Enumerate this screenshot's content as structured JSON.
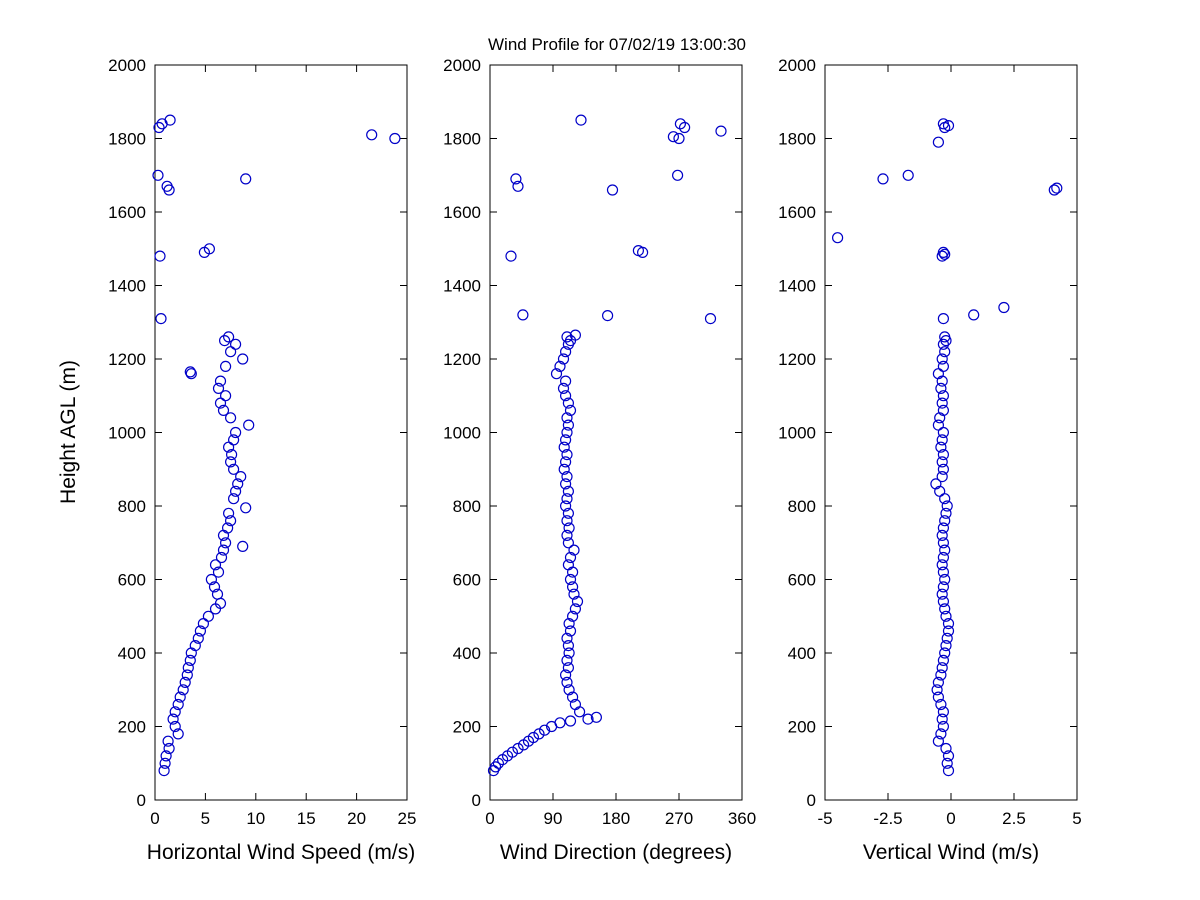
{
  "title": "Wind Profile for  07/02/19 13:00:30",
  "ylabel": "Height AGL (m)",
  "marker_color": "#0000c8",
  "chart_data": [
    {
      "type": "scatter",
      "name": "horizontal-wind-speed",
      "xlabel": "Horizontal Wind Speed (m/s)",
      "ylabel": "Height AGL (m)",
      "xlim": [
        0,
        25
      ],
      "xticks": [
        0,
        5,
        10,
        15,
        20,
        25
      ],
      "ylim": [
        0,
        2000
      ],
      "yticks": [
        0,
        200,
        400,
        600,
        800,
        1000,
        1200,
        1400,
        1600,
        1800,
        2000
      ],
      "grid": false,
      "points": [
        [
          0.9,
          80
        ],
        [
          1.0,
          100
        ],
        [
          1.1,
          120
        ],
        [
          1.4,
          140
        ],
        [
          1.3,
          160
        ],
        [
          2.3,
          180
        ],
        [
          2.0,
          200
        ],
        [
          1.8,
          220
        ],
        [
          2.0,
          240
        ],
        [
          2.3,
          260
        ],
        [
          2.5,
          280
        ],
        [
          2.8,
          300
        ],
        [
          3.0,
          320
        ],
        [
          3.2,
          340
        ],
        [
          3.3,
          360
        ],
        [
          3.5,
          380
        ],
        [
          3.6,
          400
        ],
        [
          4.0,
          420
        ],
        [
          4.3,
          440
        ],
        [
          4.5,
          460
        ],
        [
          4.8,
          480
        ],
        [
          5.3,
          500
        ],
        [
          6.0,
          520
        ],
        [
          6.5,
          535
        ],
        [
          6.2,
          560
        ],
        [
          5.9,
          580
        ],
        [
          5.6,
          600
        ],
        [
          6.3,
          620
        ],
        [
          6.0,
          640
        ],
        [
          6.6,
          660
        ],
        [
          6.8,
          680
        ],
        [
          8.7,
          690
        ],
        [
          7.0,
          700
        ],
        [
          6.8,
          720
        ],
        [
          7.2,
          740
        ],
        [
          7.5,
          760
        ],
        [
          7.3,
          780
        ],
        [
          9.0,
          795
        ],
        [
          7.8,
          820
        ],
        [
          8.0,
          840
        ],
        [
          8.2,
          860
        ],
        [
          8.5,
          880
        ],
        [
          7.8,
          900
        ],
        [
          7.5,
          920
        ],
        [
          7.6,
          940
        ],
        [
          7.3,
          960
        ],
        [
          7.8,
          980
        ],
        [
          8.0,
          1000
        ],
        [
          9.3,
          1020
        ],
        [
          7.5,
          1040
        ],
        [
          6.8,
          1060
        ],
        [
          6.5,
          1080
        ],
        [
          7.0,
          1100
        ],
        [
          6.3,
          1120
        ],
        [
          6.5,
          1140
        ],
        [
          3.6,
          1160
        ],
        [
          3.5,
          1165
        ],
        [
          7.0,
          1180
        ],
        [
          8.7,
          1200
        ],
        [
          7.5,
          1220
        ],
        [
          8.0,
          1240
        ],
        [
          6.9,
          1250
        ],
        [
          7.3,
          1260
        ],
        [
          0.6,
          1310
        ],
        [
          0.5,
          1480
        ],
        [
          4.9,
          1490
        ],
        [
          5.4,
          1500
        ],
        [
          1.4,
          1660
        ],
        [
          1.2,
          1670
        ],
        [
          9.0,
          1690
        ],
        [
          0.3,
          1700
        ],
        [
          23.8,
          1800
        ],
        [
          21.5,
          1810
        ],
        [
          0.4,
          1830
        ],
        [
          0.7,
          1840
        ],
        [
          1.5,
          1850
        ]
      ]
    },
    {
      "type": "scatter",
      "name": "wind-direction",
      "xlabel": "Wind Direction (degrees)",
      "ylabel": "Height AGL (m)",
      "xlim": [
        0,
        360
      ],
      "xticks": [
        0,
        90,
        180,
        270,
        360
      ],
      "ylim": [
        0,
        2000
      ],
      "yticks": [
        0,
        200,
        400,
        600,
        800,
        1000,
        1200,
        1400,
        1600,
        1800,
        2000
      ],
      "grid": false,
      "points": [
        [
          5,
          80
        ],
        [
          8,
          90
        ],
        [
          12,
          100
        ],
        [
          18,
          110
        ],
        [
          25,
          120
        ],
        [
          32,
          130
        ],
        [
          40,
          140
        ],
        [
          48,
          150
        ],
        [
          55,
          160
        ],
        [
          62,
          170
        ],
        [
          70,
          180
        ],
        [
          78,
          190
        ],
        [
          88,
          200
        ],
        [
          100,
          210
        ],
        [
          115,
          215
        ],
        [
          140,
          220
        ],
        [
          152,
          225
        ],
        [
          128,
          240
        ],
        [
          122,
          260
        ],
        [
          118,
          280
        ],
        [
          113,
          300
        ],
        [
          110,
          320
        ],
        [
          108,
          340
        ],
        [
          112,
          360
        ],
        [
          110,
          380
        ],
        [
          113,
          400
        ],
        [
          112,
          420
        ],
        [
          110,
          440
        ],
        [
          115,
          460
        ],
        [
          113,
          480
        ],
        [
          118,
          500
        ],
        [
          122,
          520
        ],
        [
          125,
          540
        ],
        [
          120,
          560
        ],
        [
          118,
          580
        ],
        [
          115,
          600
        ],
        [
          118,
          620
        ],
        [
          112,
          640
        ],
        [
          115,
          660
        ],
        [
          120,
          680
        ],
        [
          112,
          700
        ],
        [
          110,
          720
        ],
        [
          113,
          740
        ],
        [
          110,
          760
        ],
        [
          112,
          780
        ],
        [
          108,
          800
        ],
        [
          110,
          820
        ],
        [
          112,
          840
        ],
        [
          108,
          860
        ],
        [
          110,
          880
        ],
        [
          106,
          900
        ],
        [
          108,
          920
        ],
        [
          110,
          940
        ],
        [
          106,
          960
        ],
        [
          108,
          980
        ],
        [
          110,
          1000
        ],
        [
          112,
          1020
        ],
        [
          110,
          1040
        ],
        [
          115,
          1060
        ],
        [
          112,
          1080
        ],
        [
          108,
          1100
        ],
        [
          105,
          1120
        ],
        [
          108,
          1140
        ],
        [
          95,
          1160
        ],
        [
          100,
          1180
        ],
        [
          105,
          1200
        ],
        [
          108,
          1220
        ],
        [
          112,
          1240
        ],
        [
          115,
          1250
        ],
        [
          110,
          1260
        ],
        [
          122,
          1265
        ],
        [
          315,
          1310
        ],
        [
          168,
          1318
        ],
        [
          47,
          1320
        ],
        [
          30,
          1480
        ],
        [
          218,
          1490
        ],
        [
          212,
          1495
        ],
        [
          175,
          1660
        ],
        [
          40,
          1670
        ],
        [
          37,
          1690
        ],
        [
          268,
          1700
        ],
        [
          270,
          1800
        ],
        [
          262,
          1805
        ],
        [
          330,
          1820
        ],
        [
          278,
          1830
        ],
        [
          272,
          1840
        ],
        [
          130,
          1850
        ]
      ]
    },
    {
      "type": "scatter",
      "name": "vertical-wind",
      "xlabel": "Vertical Wind (m/s)",
      "ylabel": "Height AGL (m)",
      "xlim": [
        -5,
        5
      ],
      "xticks": [
        -5,
        -2.5,
        0,
        2.5,
        5
      ],
      "ylim": [
        0,
        2000
      ],
      "yticks": [
        0,
        200,
        400,
        600,
        800,
        1000,
        1200,
        1400,
        1600,
        1800,
        2000
      ],
      "grid": false,
      "points": [
        [
          -0.1,
          80
        ],
        [
          -0.15,
          100
        ],
        [
          -0.1,
          120
        ],
        [
          -0.2,
          140
        ],
        [
          -0.5,
          160
        ],
        [
          -0.4,
          180
        ],
        [
          -0.3,
          200
        ],
        [
          -0.35,
          220
        ],
        [
          -0.3,
          240
        ],
        [
          -0.4,
          260
        ],
        [
          -0.5,
          280
        ],
        [
          -0.55,
          300
        ],
        [
          -0.5,
          320
        ],
        [
          -0.4,
          340
        ],
        [
          -0.35,
          360
        ],
        [
          -0.3,
          380
        ],
        [
          -0.25,
          400
        ],
        [
          -0.2,
          420
        ],
        [
          -0.15,
          440
        ],
        [
          -0.1,
          460
        ],
        [
          -0.1,
          480
        ],
        [
          -0.2,
          500
        ],
        [
          -0.25,
          520
        ],
        [
          -0.3,
          540
        ],
        [
          -0.35,
          560
        ],
        [
          -0.3,
          580
        ],
        [
          -0.25,
          600
        ],
        [
          -0.3,
          620
        ],
        [
          -0.35,
          640
        ],
        [
          -0.3,
          660
        ],
        [
          -0.25,
          680
        ],
        [
          -0.3,
          700
        ],
        [
          -0.35,
          720
        ],
        [
          -0.3,
          740
        ],
        [
          -0.25,
          760
        ],
        [
          -0.2,
          780
        ],
        [
          -0.15,
          800
        ],
        [
          -0.25,
          820
        ],
        [
          -0.45,
          840
        ],
        [
          -0.6,
          860
        ],
        [
          -0.35,
          880
        ],
        [
          -0.3,
          900
        ],
        [
          -0.35,
          920
        ],
        [
          -0.3,
          940
        ],
        [
          -0.4,
          960
        ],
        [
          -0.35,
          980
        ],
        [
          -0.3,
          1000
        ],
        [
          -0.5,
          1020
        ],
        [
          -0.45,
          1040
        ],
        [
          -0.3,
          1060
        ],
        [
          -0.35,
          1080
        ],
        [
          -0.3,
          1100
        ],
        [
          -0.4,
          1120
        ],
        [
          -0.35,
          1140
        ],
        [
          -0.5,
          1160
        ],
        [
          -0.3,
          1180
        ],
        [
          -0.35,
          1200
        ],
        [
          -0.25,
          1220
        ],
        [
          -0.3,
          1240
        ],
        [
          -0.2,
          1250
        ],
        [
          -0.25,
          1260
        ],
        [
          -0.3,
          1310
        ],
        [
          0.9,
          1320
        ],
        [
          2.1,
          1340
        ],
        [
          -0.35,
          1480
        ],
        [
          -0.25,
          1485
        ],
        [
          -0.3,
          1490
        ],
        [
          -4.5,
          1530
        ],
        [
          4.1,
          1660
        ],
        [
          4.2,
          1665
        ],
        [
          -2.7,
          1690
        ],
        [
          -1.7,
          1700
        ],
        [
          -0.5,
          1790
        ],
        [
          -0.25,
          1830
        ],
        [
          -0.1,
          1835
        ],
        [
          -0.3,
          1840
        ]
      ]
    }
  ]
}
